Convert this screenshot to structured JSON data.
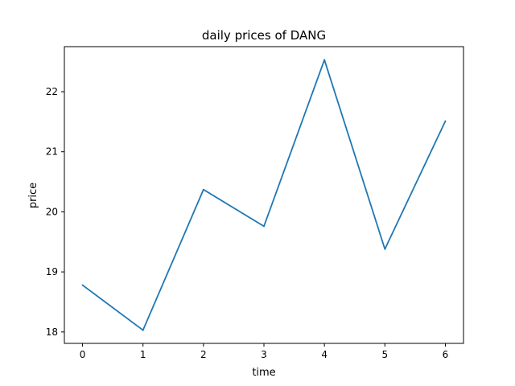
{
  "chart_data": {
    "type": "line",
    "title": "daily prices of DANG",
    "xlabel": "time",
    "ylabel": "price",
    "x": [
      0,
      1,
      2,
      3,
      4,
      5,
      6
    ],
    "series": [
      {
        "values": [
          18.78,
          18.03,
          20.37,
          19.76,
          22.53,
          19.38,
          21.51
        ],
        "color": "#1f77b4"
      }
    ],
    "xticks": [
      0,
      1,
      2,
      3,
      4,
      5,
      6
    ],
    "yticks": [
      18,
      19,
      20,
      21,
      22
    ],
    "xlim": [
      -0.3,
      6.3
    ],
    "ylim": [
      17.81,
      22.75
    ],
    "grid": false
  }
}
